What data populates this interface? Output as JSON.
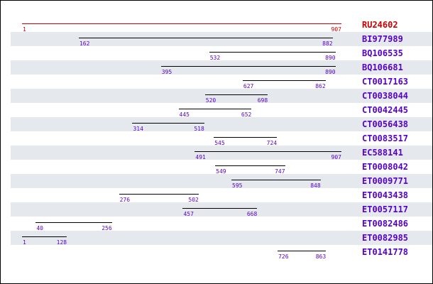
{
  "ref_length": 907,
  "colors": {
    "reference": "#cc0000",
    "hit_bar": "#000000",
    "label": "#5500cc",
    "row_shade": "#e5e9ed"
  },
  "alignments": [
    {
      "name": "RU24602",
      "start": 1,
      "end": 907,
      "reference": true
    },
    {
      "name": "BI977989",
      "start": 162,
      "end": 882
    },
    {
      "name": "BQ106535",
      "start": 532,
      "end": 890
    },
    {
      "name": "BQ106681",
      "start": 395,
      "end": 890
    },
    {
      "name": "CT0017163",
      "start": 627,
      "end": 862
    },
    {
      "name": "CT0038044",
      "start": 520,
      "end": 698
    },
    {
      "name": "CT0042445",
      "start": 445,
      "end": 652
    },
    {
      "name": "CT0056438",
      "start": 314,
      "end": 518
    },
    {
      "name": "CT0083517",
      "start": 545,
      "end": 724
    },
    {
      "name": "EC588141",
      "start": 491,
      "end": 907
    },
    {
      "name": "ET0008042",
      "start": 549,
      "end": 747
    },
    {
      "name": "ET0009771",
      "start": 595,
      "end": 848
    },
    {
      "name": "ET0043438",
      "start": 276,
      "end": 502
    },
    {
      "name": "ET0057117",
      "start": 457,
      "end": 668
    },
    {
      "name": "ET0082486",
      "start": 40,
      "end": 256
    },
    {
      "name": "ET0082985",
      "start": 1,
      "end": 128
    },
    {
      "name": "ET0141778",
      "start": 726,
      "end": 863
    }
  ]
}
